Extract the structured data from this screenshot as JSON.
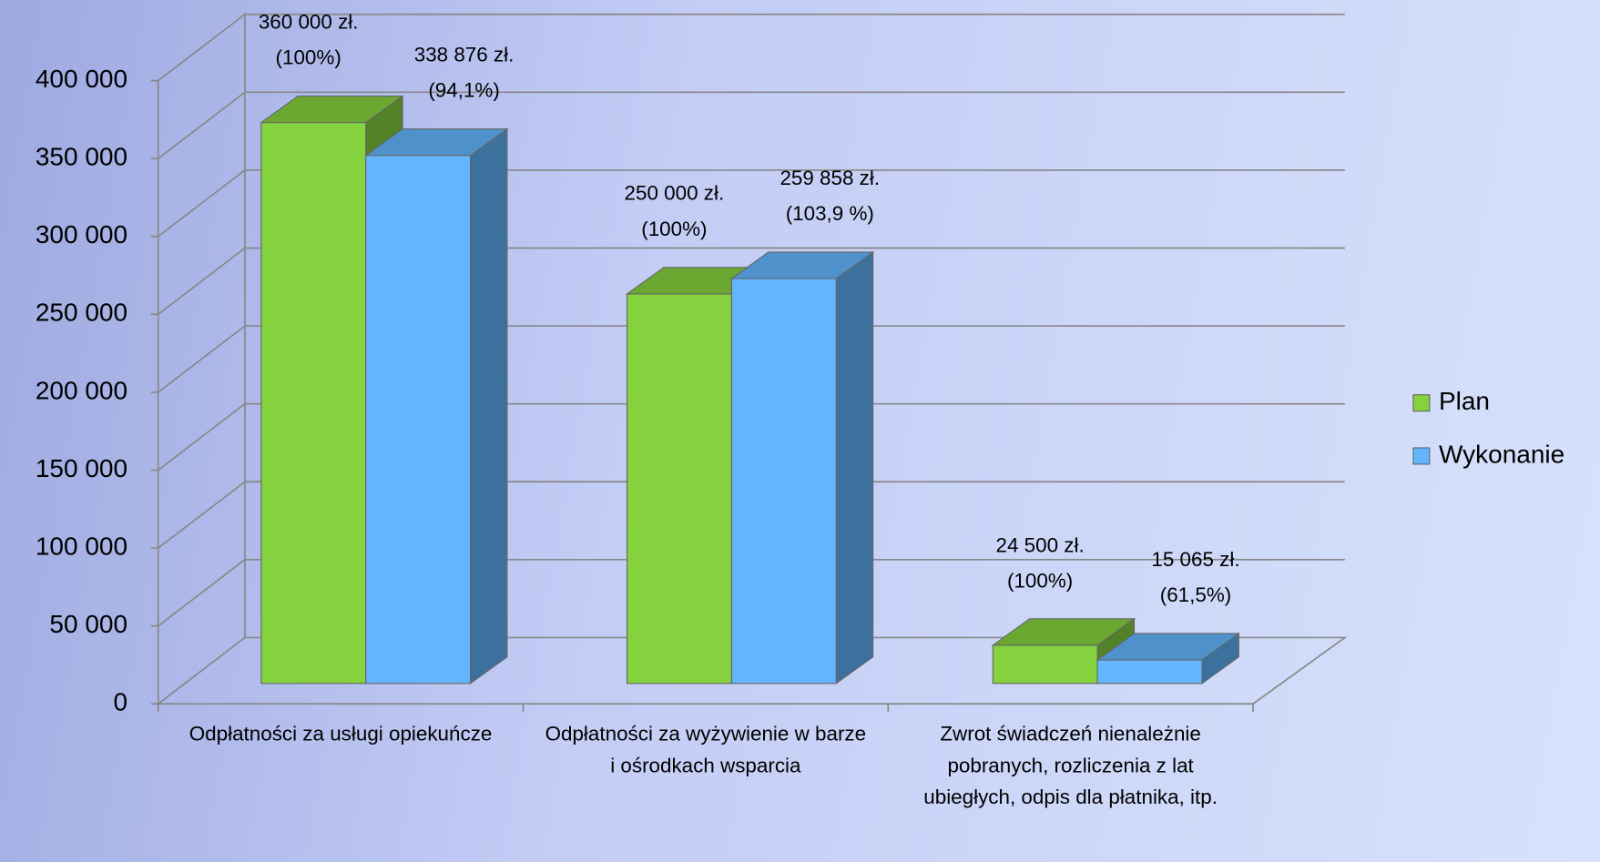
{
  "chart_data": {
    "type": "bar3d",
    "categories": [
      "Odpłatności za usługi opiekuńcze",
      "Odpłatności za wyżywienie w barze i ośrodkach wsparcia",
      "Zwrot świadczeń nienależnie pobranych, rozliczenia z lat ubiegłych, odpis dla płatnika, itp."
    ],
    "series": [
      {
        "name": "Plan",
        "color": "#84d23e",
        "values": [
          360000,
          250000,
          24500
        ],
        "value_labels": [
          "360 000 zł.\n(100%)",
          "250 000 zł.\n(100%)",
          "24 500 zł.\n(100%)"
        ]
      },
      {
        "name": "Wykonanie",
        "color": "#63b6fe",
        "values": [
          338876,
          259858,
          15065
        ],
        "value_labels": [
          "338 876 zł.\n(94,1%)",
          "259 858 zł.\n(103,9 %)",
          "15 065 zł.\n(61,5%)"
        ]
      }
    ],
    "ylim": [
      0,
      400000
    ],
    "yticks": [
      0,
      {
        "value": 50000,
        "label": "50 000"
      },
      {
        "value": 100000,
        "label": "100 000"
      },
      {
        "value": 150000,
        "label": "150 000"
      },
      {
        "value": 200000,
        "label": "200 000"
      },
      {
        "value": 250000,
        "label": "250 000"
      },
      {
        "value": 300000,
        "label": "300 000"
      },
      {
        "value": 350000,
        "label": "350 000"
      },
      {
        "value": 400000,
        "label": "400 000"
      }
    ],
    "grid": true,
    "legend": "right"
  }
}
